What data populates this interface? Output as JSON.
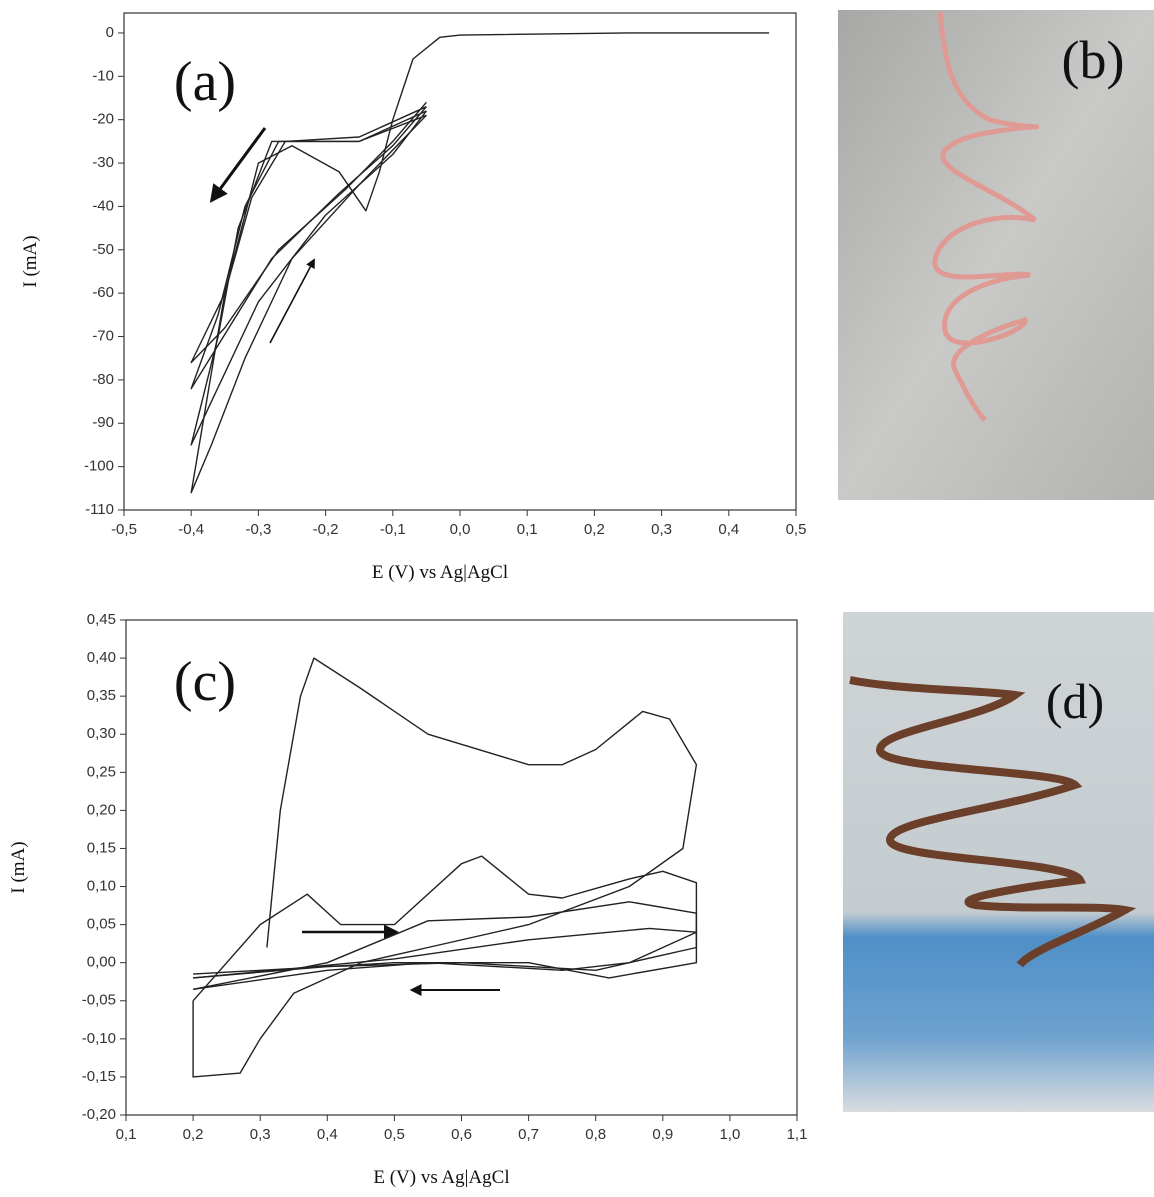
{
  "chart_data": [
    {
      "type": "line",
      "annotation": "(a)",
      "x_label": "E (V) vs Ag|AgCl",
      "y_label": "I (mA)",
      "xlim": [
        -0.5,
        0.5
      ],
      "xticks": [
        {
          "value": -0.5,
          "label": "-0,5"
        },
        {
          "value": -0.4,
          "label": "-0,4"
        },
        {
          "value": -0.3,
          "label": "-0,3"
        },
        {
          "value": -0.2,
          "label": "-0,2"
        },
        {
          "value": -0.1,
          "label": "-0,1"
        },
        {
          "value": 0,
          "label": "0,0"
        },
        {
          "value": 0.1,
          "label": "0,1"
        },
        {
          "value": 0.2,
          "label": "0,2"
        },
        {
          "value": 0.3,
          "label": "0,3"
        },
        {
          "value": 0.4,
          "label": "0,4"
        },
        {
          "value": 0.5,
          "label": "0,5"
        }
      ],
      "ylim": [
        -110,
        4.6
      ],
      "yticks": [
        0,
        -10,
        -20,
        -30,
        -40,
        -50,
        -60,
        -70,
        -80,
        -90,
        -100,
        -110
      ],
      "series": [
        {
          "color": "#222222",
          "x": [
            0.46,
            0.25,
            0.0,
            -0.03,
            -0.07,
            -0.1,
            -0.12,
            -0.14,
            -0.18,
            -0.25,
            -0.3,
            -0.35,
            -0.4,
            -0.37,
            -0.32,
            -0.25,
            -0.15,
            -0.05
          ],
          "values": [
            0,
            0,
            -0.5,
            -1,
            -6,
            -20,
            -32,
            -41,
            -32,
            -26,
            -30,
            -60,
            -106,
            -95,
            -75,
            -52,
            -35,
            -19
          ]
        },
        {
          "color": "#222222",
          "x": [
            -0.05,
            -0.15,
            -0.28,
            -0.33,
            -0.36,
            -0.4,
            -0.37,
            -0.3,
            -0.2,
            -0.1,
            -0.05
          ],
          "values": [
            -19,
            -25,
            -25,
            -45,
            -70,
            -95,
            -85,
            -62,
            -42,
            -28,
            -18
          ]
        },
        {
          "color": "#222222",
          "x": [
            -0.05,
            -0.15,
            -0.27,
            -0.32,
            -0.36,
            -0.4,
            -0.36,
            -0.28,
            -0.18,
            -0.1,
            -0.05
          ],
          "values": [
            -18,
            -25,
            -25,
            -40,
            -65,
            -82,
            -72,
            -52,
            -37,
            -26,
            -17
          ]
        },
        {
          "color": "#222222",
          "x": [
            -0.05,
            -0.15,
            -0.26,
            -0.31,
            -0.35,
            -0.4,
            -0.35,
            -0.27,
            -0.17,
            -0.1,
            -0.05
          ],
          "values": [
            -17,
            -24,
            -25,
            -38,
            -60,
            -76,
            -68,
            -50,
            -36,
            -25,
            -16
          ]
        }
      ]
    },
    {
      "type": "line",
      "annotation": "(c)",
      "x_label": "E (V) vs Ag|AgCl",
      "y_label": "I (mA)",
      "xlim": [
        0.1,
        1.1
      ],
      "xticks": [
        {
          "value": 0.1,
          "label": "0,1"
        },
        {
          "value": 0.2,
          "label": "0,2"
        },
        {
          "value": 0.3,
          "label": "0,3"
        },
        {
          "value": 0.4,
          "label": "0,4"
        },
        {
          "value": 0.5,
          "label": "0,5"
        },
        {
          "value": 0.6,
          "label": "0,6"
        },
        {
          "value": 0.7,
          "label": "0,7"
        },
        {
          "value": 0.8,
          "label": "0,8"
        },
        {
          "value": 0.9,
          "label": "0,9"
        },
        {
          "value": 1.0,
          "label": "1,0"
        },
        {
          "value": 1.1,
          "label": "1,1"
        }
      ],
      "ylim": [
        -0.2,
        0.45
      ],
      "yticks": [
        {
          "value": 0.45,
          "label": "0,45"
        },
        {
          "value": 0.4,
          "label": "0,40"
        },
        {
          "value": 0.35,
          "label": "0,35"
        },
        {
          "value": 0.3,
          "label": "0,30"
        },
        {
          "value": 0.25,
          "label": "0,25"
        },
        {
          "value": 0.2,
          "label": "0,20"
        },
        {
          "value": 0.15,
          "label": "0,15"
        },
        {
          "value": 0.1,
          "label": "0,10"
        },
        {
          "value": 0.05,
          "label": "0,05"
        },
        {
          "value": 0,
          "label": "0,00"
        },
        {
          "value": -0.05,
          "label": "-0,05"
        },
        {
          "value": -0.1,
          "label": "-0,10"
        },
        {
          "value": -0.15,
          "label": "-0,15"
        },
        {
          "value": -0.2,
          "label": "-0,20"
        }
      ],
      "series": [
        {
          "color": "#222222",
          "x": [
            0.31,
            0.33,
            0.36,
            0.38,
            0.45,
            0.55,
            0.7,
            0.75,
            0.8,
            0.87,
            0.91,
            0.95,
            0.93,
            0.85,
            0.7,
            0.55,
            0.45,
            0.35,
            0.3,
            0.27,
            0.2,
            0.2
          ],
          "values": [
            0.02,
            0.2,
            0.35,
            0.4,
            0.36,
            0.3,
            0.26,
            0.26,
            0.28,
            0.33,
            0.32,
            0.26,
            0.15,
            0.1,
            0.05,
            0.02,
            0.0,
            -0.04,
            -0.1,
            -0.145,
            -0.15,
            -0.05
          ]
        },
        {
          "color": "#222222",
          "x": [
            0.2,
            0.3,
            0.37,
            0.42,
            0.5,
            0.6,
            0.63,
            0.7,
            0.75,
            0.85,
            0.9,
            0.95,
            0.95,
            0.85,
            0.75,
            0.55,
            0.4,
            0.2
          ],
          "values": [
            -0.05,
            0.05,
            0.09,
            0.05,
            0.05,
            0.13,
            0.14,
            0.09,
            0.085,
            0.11,
            0.12,
            0.105,
            0.04,
            0.0,
            -0.01,
            0.0,
            -0.01,
            -0.035
          ]
        },
        {
          "color": "#222222",
          "x": [
            0.2,
            0.4,
            0.55,
            0.7,
            0.85,
            0.95,
            0.95,
            0.8,
            0.6,
            0.4,
            0.2
          ],
          "values": [
            -0.035,
            0.0,
            0.055,
            0.06,
            0.08,
            0.065,
            0.02,
            -0.01,
            0.0,
            -0.005,
            -0.02
          ]
        },
        {
          "color": "#222222",
          "x": [
            0.2,
            0.5,
            0.7,
            0.88,
            0.95,
            0.95,
            0.82,
            0.7,
            0.5,
            0.2
          ],
          "values": [
            -0.02,
            0.005,
            0.03,
            0.045,
            0.04,
            0.0,
            -0.02,
            0.0,
            0.0,
            -0.015
          ]
        }
      ]
    }
  ],
  "photos": [
    {
      "label": "(b)"
    },
    {
      "label": "(d)"
    }
  ]
}
